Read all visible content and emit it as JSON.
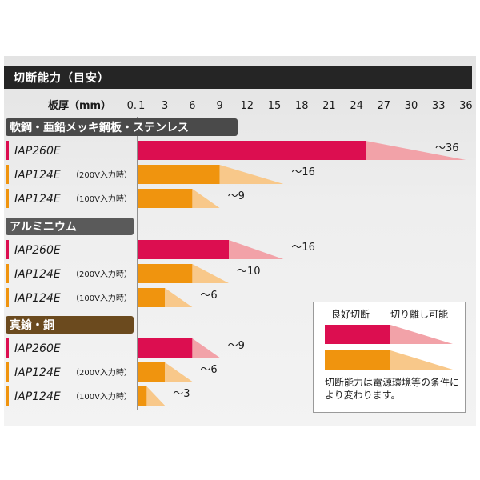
{
  "title": "切断能力（目安）",
  "chart_data": {
    "type": "bar",
    "title": "切断能力（目安）",
    "xlabel": "板厚（mm）",
    "ylabel": "",
    "xlim": [
      0,
      36
    ],
    "ticks": [
      "0",
      "1",
      "3",
      "6",
      "9",
      "12",
      "15",
      "18",
      "21",
      "24",
      "27",
      "30",
      "33",
      "36"
    ],
    "tick_values": [
      0,
      1,
      3,
      6,
      9,
      12,
      15,
      18,
      21,
      24,
      27,
      30,
      33,
      36
    ],
    "groups": [
      {
        "name": "軟鋼・亜鉛メッキ鋼板・ステンレス",
        "color": "#4a4a4a",
        "rows": [
          {
            "model": "IAP260E",
            "note": "",
            "good": 25,
            "max": 36,
            "label": "～36",
            "fill": "#dc0e50",
            "light": "#f2a2a8"
          },
          {
            "model": "IAP124E",
            "note": "（200V入力時）",
            "good": 9,
            "max": 16,
            "label": "～16",
            "fill": "#f0940e",
            "light": "#f8c88a"
          },
          {
            "model": "IAP124E",
            "note": "（100V入力時）",
            "good": 6,
            "max": 9,
            "label": "～9",
            "fill": "#f0940e",
            "light": "#f8c88a"
          }
        ]
      },
      {
        "name": "アルミニウム",
        "color": "#5a5a5a",
        "rows": [
          {
            "model": "IAP260E",
            "note": "",
            "good": 10,
            "max": 16,
            "label": "～16",
            "fill": "#dc0e50",
            "light": "#f2a2a8"
          },
          {
            "model": "IAP124E",
            "note": "（200V入力時）",
            "good": 6,
            "max": 10,
            "label": "～10",
            "fill": "#f0940e",
            "light": "#f8c88a"
          },
          {
            "model": "IAP124E",
            "note": "（100V入力時）",
            "good": 3,
            "max": 6,
            "label": "～6",
            "fill": "#f0940e",
            "light": "#f8c88a"
          }
        ]
      },
      {
        "name": "真鍮・銅",
        "color": "#6b4a1e",
        "rows": [
          {
            "model": "IAP260E",
            "note": "",
            "good": 6,
            "max": 9,
            "label": "～9",
            "fill": "#dc0e50",
            "light": "#f2a2a8"
          },
          {
            "model": "IAP124E",
            "note": "（200V入力時）",
            "good": 3,
            "max": 6,
            "label": "～6",
            "fill": "#f0940e",
            "light": "#f8c88a"
          },
          {
            "model": "IAP124E",
            "note": "（100V入力時）",
            "good": 1,
            "max": 3,
            "label": "～3",
            "fill": "#f0940e",
            "light": "#f8c88a"
          }
        ]
      }
    ]
  },
  "legend": {
    "good_label": "良好切断",
    "separable_label": "切り離し可能",
    "note": "切断能力は電源環境等の条件により変わります。",
    "colors": {
      "red": "#dc0e50",
      "red_light": "#f2a2a8",
      "orange": "#f0940e",
      "orange_light": "#f8c88a"
    }
  }
}
